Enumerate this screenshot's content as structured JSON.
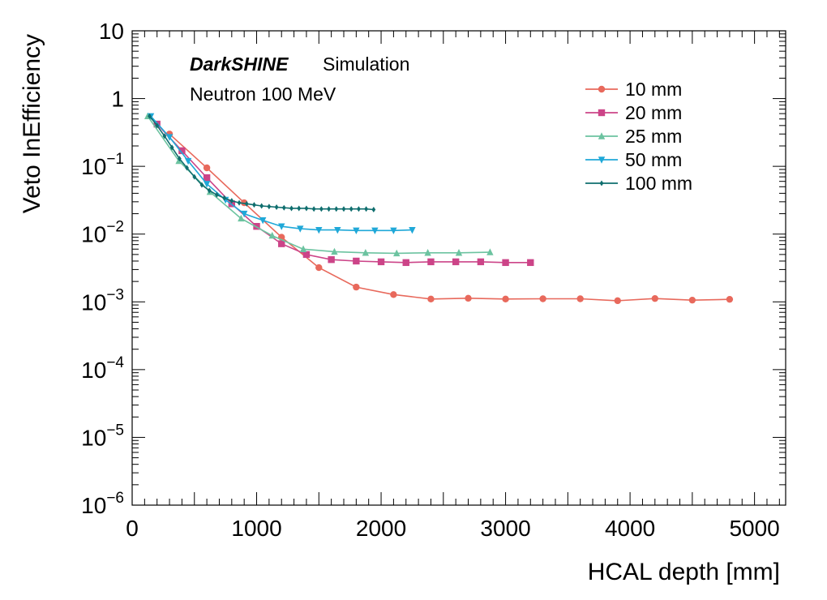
{
  "chart_data": {
    "type": "line",
    "title": "",
    "brand": "DarkSHINE",
    "brand_suffix": "Simulation",
    "subtitle": "Neutron 100 MeV",
    "xlabel": "HCAL depth [mm]",
    "ylabel": "Veto InEfficiency",
    "xlim": [
      0,
      5250
    ],
    "ylim_log10": [
      -6,
      1
    ],
    "yscale": "log",
    "legend_position": "top-right",
    "x_ticks": [
      {
        "value": 0,
        "label": "0"
      },
      {
        "value": 1000,
        "label": "1000"
      },
      {
        "value": 2000,
        "label": "2000"
      },
      {
        "value": 3000,
        "label": "3000"
      },
      {
        "value": 4000,
        "label": "4000"
      },
      {
        "value": 5000,
        "label": "5000"
      }
    ],
    "y_ticks": [
      {
        "exp": 1,
        "base": "10",
        "sup": ""
      },
      {
        "exp": 0,
        "base": "1",
        "sup": ""
      },
      {
        "exp": -1,
        "base": "10",
        "sup": "−1"
      },
      {
        "exp": -2,
        "base": "10",
        "sup": "−2"
      },
      {
        "exp": -3,
        "base": "10",
        "sup": "−3"
      },
      {
        "exp": -4,
        "base": "10",
        "sup": "−4"
      },
      {
        "exp": -5,
        "base": "10",
        "sup": "−5"
      },
      {
        "exp": -6,
        "base": "10",
        "sup": "−6"
      }
    ],
    "series": [
      {
        "name": "10 mm",
        "color": "#e8695c",
        "marker": "circle",
        "x": [
          300,
          600,
          900,
          1200,
          1500,
          1800,
          2100,
          2400,
          2700,
          3000,
          3300,
          3600,
          3900,
          4200,
          4500,
          4800
        ],
        "y": [
          0.3,
          0.095,
          0.029,
          0.009,
          0.0032,
          0.00165,
          0.00128,
          0.0011,
          0.00113,
          0.0011,
          0.00111,
          0.00111,
          0.00104,
          0.00112,
          0.00106,
          0.00109
        ]
      },
      {
        "name": "20 mm",
        "color": "#cc4488",
        "marker": "square",
        "x": [
          200,
          400,
          600,
          800,
          1000,
          1200,
          1400,
          1600,
          1800,
          2000,
          2200,
          2400,
          2600,
          2800,
          3000,
          3200
        ],
        "y": [
          0.42,
          0.17,
          0.068,
          0.028,
          0.013,
          0.0072,
          0.005,
          0.0042,
          0.004,
          0.0039,
          0.0038,
          0.0039,
          0.0039,
          0.0039,
          0.0038,
          0.0038
        ]
      },
      {
        "name": "25 mm",
        "color": "#6cc3a0",
        "marker": "triangle-up",
        "x": [
          125,
          375,
          625,
          875,
          1125,
          1375,
          1625,
          1875,
          2125,
          2375,
          2625,
          2875
        ],
        "y": [
          0.55,
          0.12,
          0.042,
          0.017,
          0.0095,
          0.006,
          0.0055,
          0.0053,
          0.0052,
          0.0053,
          0.0053,
          0.0054
        ]
      },
      {
        "name": "50 mm",
        "color": "#1fa8d8",
        "marker": "triangle-down",
        "x": [
          150,
          300,
          450,
          600,
          750,
          900,
          1050,
          1200,
          1350,
          1500,
          1650,
          1800,
          1950,
          2100,
          2250
        ],
        "y": [
          0.55,
          0.27,
          0.12,
          0.055,
          0.032,
          0.02,
          0.016,
          0.013,
          0.012,
          0.0115,
          0.0115,
          0.0113,
          0.0113,
          0.0113,
          0.0115
        ]
      },
      {
        "name": "100 mm",
        "color": "#0f6e6e",
        "marker": "diamond",
        "x": [
          140,
          200,
          260,
          320,
          380,
          440,
          500,
          560,
          620,
          680,
          740,
          800,
          860,
          920,
          980,
          1040,
          1100,
          1160,
          1220,
          1280,
          1340,
          1400,
          1460,
          1520,
          1580,
          1640,
          1700,
          1760,
          1820,
          1880,
          1940
        ],
        "y": [
          0.55,
          0.4,
          0.28,
          0.19,
          0.13,
          0.095,
          0.07,
          0.053,
          0.044,
          0.038,
          0.034,
          0.031,
          0.029,
          0.028,
          0.027,
          0.026,
          0.0255,
          0.025,
          0.0245,
          0.024,
          0.024,
          0.024,
          0.0235,
          0.0235,
          0.0235,
          0.0235,
          0.0235,
          0.0235,
          0.0235,
          0.0235,
          0.023
        ]
      }
    ]
  }
}
